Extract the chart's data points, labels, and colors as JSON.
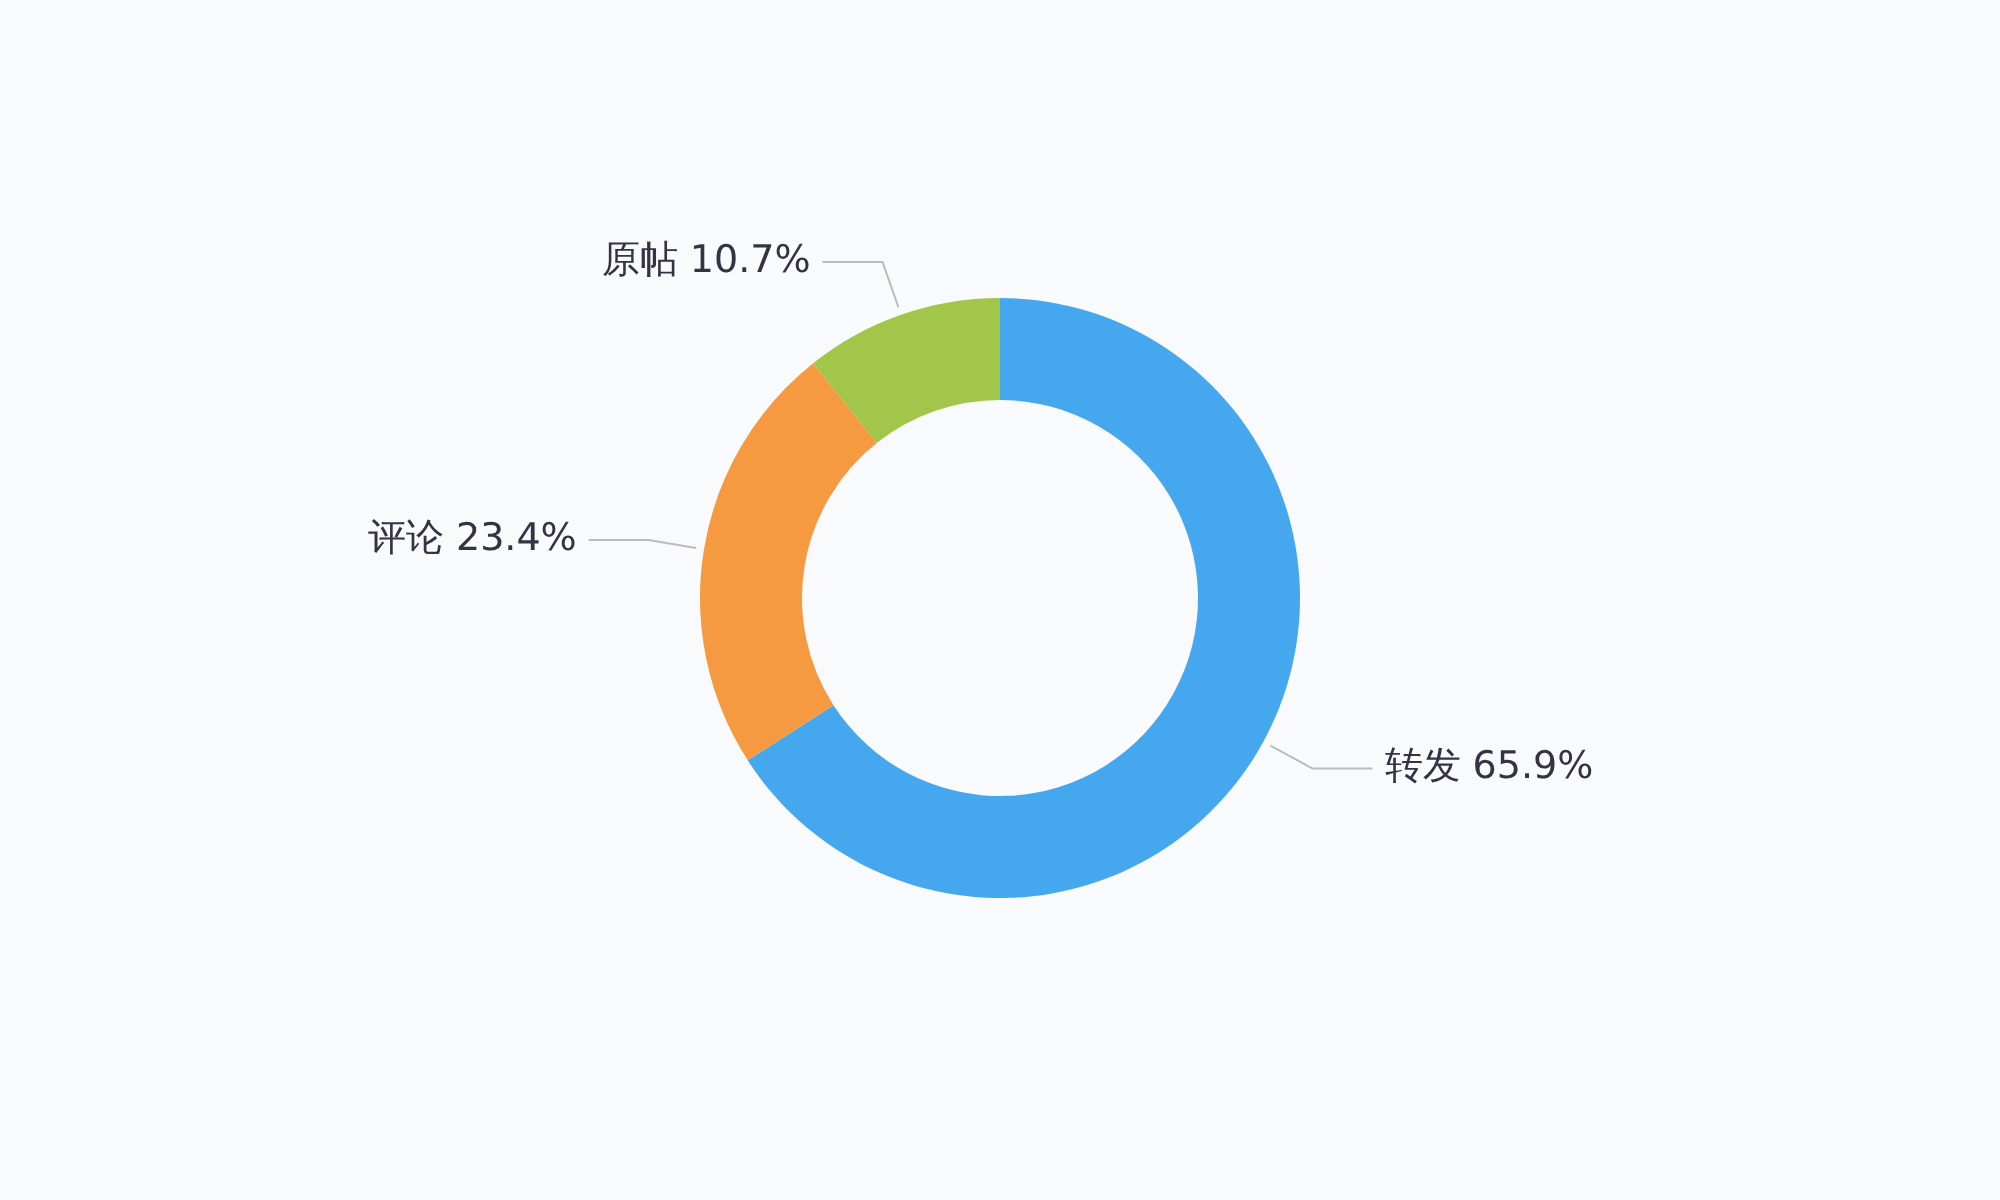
{
  "chart_data": {
    "type": "donut",
    "categories": [
      "转发",
      "评论",
      "原帖"
    ],
    "values": [
      65.9,
      23.4,
      10.7
    ],
    "colors": [
      "#45a8ee",
      "#f59a40",
      "#a2c64a"
    ],
    "value_labels": [
      "65.9%",
      "23.4%",
      "10.7%"
    ],
    "legend": false
  }
}
